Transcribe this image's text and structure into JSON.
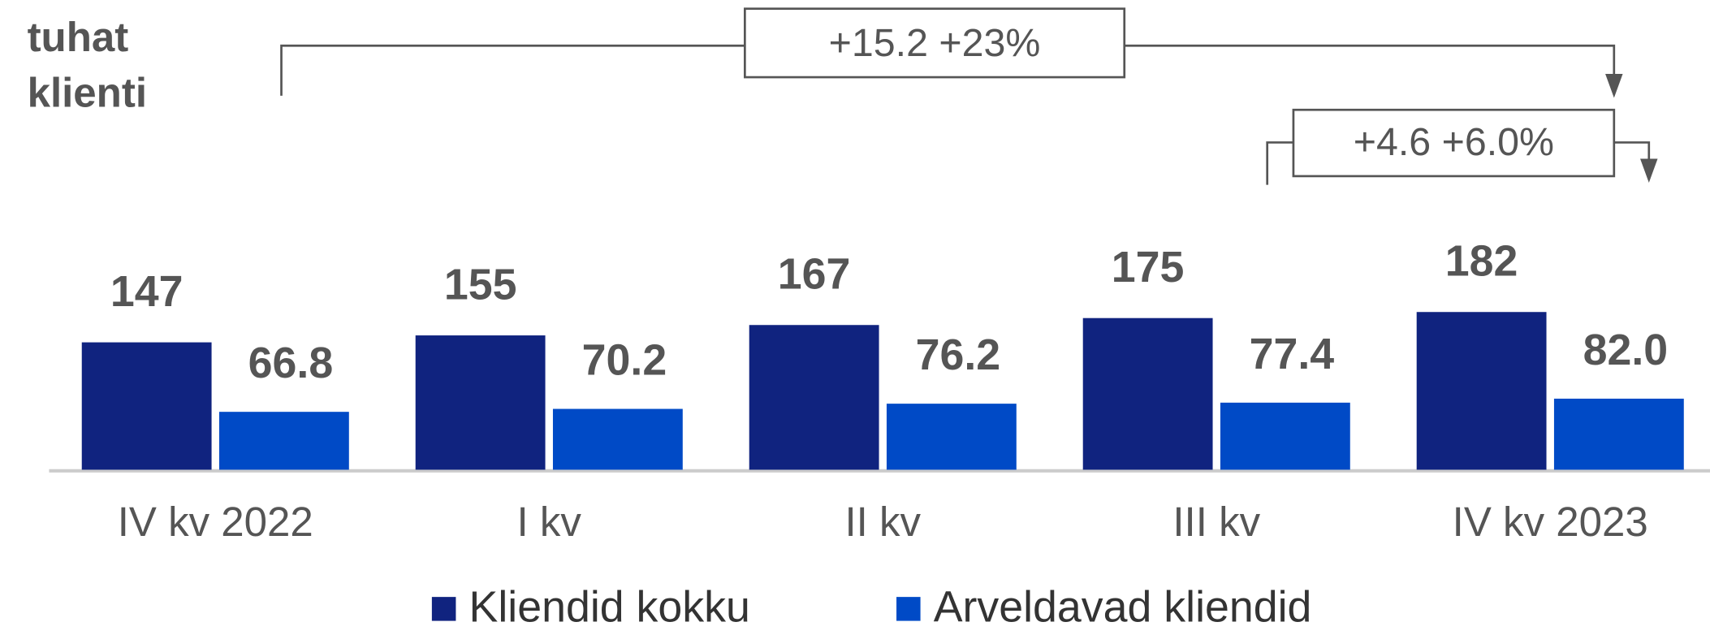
{
  "chart_data": {
    "type": "bar",
    "title": [
      "tuhat",
      "klienti"
    ],
    "categories": [
      "IV kv 2022",
      "I kv",
      "II kv",
      "III kv",
      "IV kv 2023"
    ],
    "series": [
      {
        "name": "Kliendid kokku",
        "color": "#10237f",
        "values": [
          147,
          155,
          167,
          175,
          182
        ]
      },
      {
        "name": "Arveldavad kliendid",
        "color": "#004ac6",
        "values": [
          66.8,
          70.2,
          76.2,
          77.4,
          82.0
        ],
        "value_labels": [
          "66.8",
          "70.2",
          "76.2",
          "77.4",
          "82.0"
        ]
      }
    ],
    "annotations": [
      "+15.2 +23%",
      "+4.6 +6.0%"
    ],
    "legend": "bottom"
  }
}
